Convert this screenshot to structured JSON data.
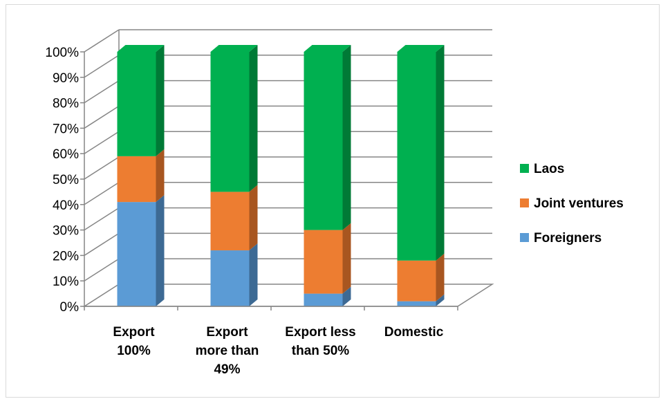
{
  "chart_data": {
    "type": "bar",
    "stacked": true,
    "percent_stacked": true,
    "three_d": true,
    "categories": [
      [
        "Export",
        "100%"
      ],
      [
        "Export",
        "more than",
        "49%"
      ],
      [
        "Export less",
        "than 50%"
      ],
      [
        "Domestic"
      ]
    ],
    "series": [
      {
        "name": "Foreigners",
        "values": [
          41,
          22,
          5,
          2
        ],
        "color": "#5b9bd5",
        "side_color": "#3d6a94"
      },
      {
        "name": "Joint ventures",
        "values": [
          18,
          23,
          25,
          16
        ],
        "color": "#ed7d31",
        "side_color": "#a85620"
      },
      {
        "name": "Laos",
        "values": [
          41,
          55,
          70,
          82
        ],
        "color": "#00b050",
        "side_color": "#007a36"
      }
    ],
    "yticks": [
      "0%",
      "10%",
      "20%",
      "30%",
      "40%",
      "50%",
      "60%",
      "70%",
      "80%",
      "90%",
      "100%"
    ],
    "ylim": [
      0,
      100
    ],
    "grid": true,
    "legend_position": "right",
    "legend_order": [
      "Laos",
      "Joint ventures",
      "Foreigners"
    ]
  }
}
